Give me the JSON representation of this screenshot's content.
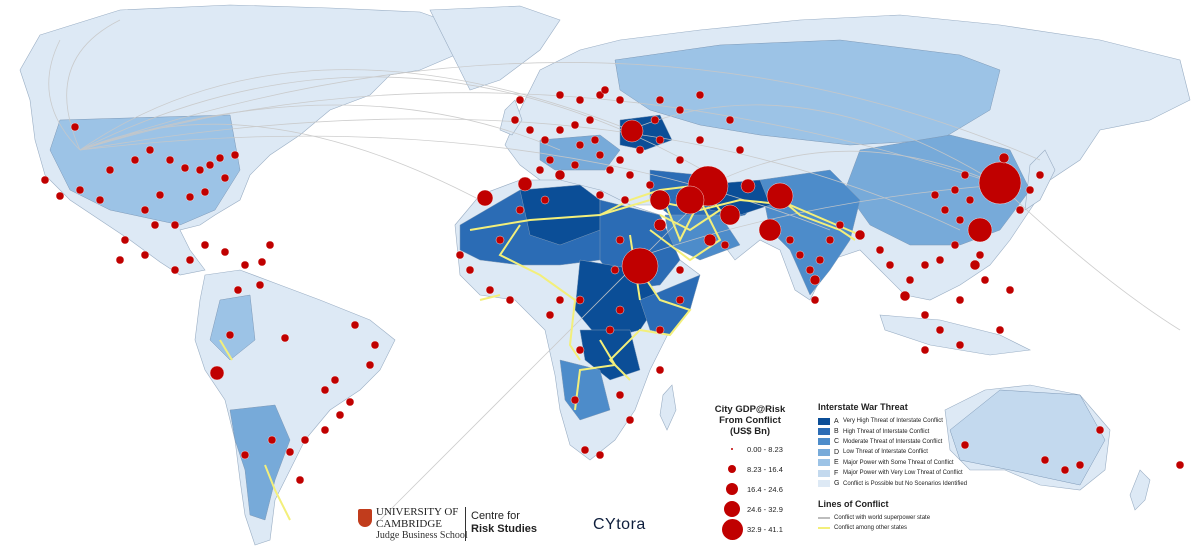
{
  "size_legend": {
    "title_lines": [
      "City GDP@Risk",
      "From Conflict",
      "(US$ Bn)"
    ],
    "classes": [
      {
        "label": "0.00 - 8.23",
        "radius": 1
      },
      {
        "label": "8.23 - 16.4",
        "radius": 4
      },
      {
        "label": "16.4 - 24.6",
        "radius": 6
      },
      {
        "label": "24.6 - 32.9",
        "radius": 8
      },
      {
        "label": "32.9 - 41.1",
        "radius": 10.5
      }
    ],
    "color": "#c00000"
  },
  "threat_legend": {
    "title": "Interstate War Threat",
    "items": [
      {
        "code": "A",
        "label": "Very High Threat of Interstate Conflict",
        "color": "#0b4e97"
      },
      {
        "code": "B",
        "label": "High Threat of Interstate Conflict",
        "color": "#2b6cb5"
      },
      {
        "code": "C",
        "label": "Moderate Threat of Interstate Conflict",
        "color": "#4d8cca"
      },
      {
        "code": "D",
        "label": "Low Threat of Interstate Conflict",
        "color": "#77aad9"
      },
      {
        "code": "E",
        "label": "Major Power with Some Threat of Conflict",
        "color": "#9cc3e6"
      },
      {
        "code": "F",
        "label": "Major Power with Very Low Threat of Conflict",
        "color": "#c3d9ee"
      },
      {
        "code": "G",
        "label": "Conflict is Possible but No Scenarios Identified",
        "color": "#dde9f5"
      }
    ]
  },
  "lines_legend": {
    "title": "Lines of Conflict",
    "items": [
      {
        "label": "Conflict with world superpower state",
        "color": "#bdbdbd"
      },
      {
        "label": "Conflict among other states",
        "color": "#f3ef7a"
      }
    ]
  },
  "logos": {
    "university": "UNIVERSITY OF",
    "cambridge": "CAMBRIDGE",
    "judge": "Judge Business School",
    "centre": "Centre for",
    "risk": "Risk Studies",
    "cytora": "CYtora"
  },
  "colors": {
    "land_default": "#dde9f5",
    "ocean": "#ffffff",
    "city": "#c00000",
    "border": "#8a9fb5"
  }
}
